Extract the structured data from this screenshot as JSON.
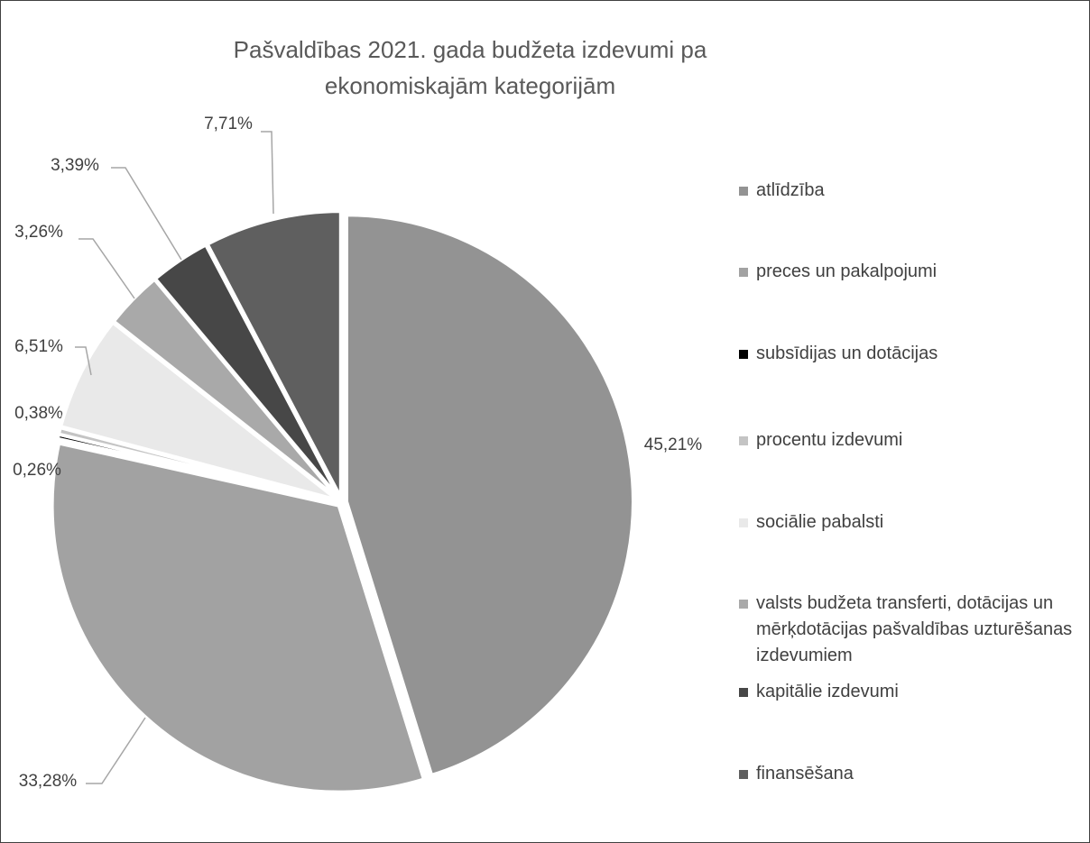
{
  "chart_data": {
    "type": "pie",
    "title": "Pašvaldības 2021. gada budžeta izdevumi pa ekonomiskajām kategorijām",
    "categories": [
      "atlīdzība",
      "preces un pakalpojumi",
      "subsīdijas un dotācijas",
      "procentu izdevumi",
      "sociālie pabalsti",
      "valsts budžeta transferti, dotācijas un mērķdotācijas pašvaldības uzturēšanas izdevumiem",
      "kapitālie izdevumi",
      "finansēšana"
    ],
    "values": [
      45.21,
      33.28,
      0.26,
      0.38,
      6.51,
      3.26,
      3.39,
      7.71
    ],
    "value_labels": [
      "45,21%",
      "33,28%",
      "0,26%",
      "0,38%",
      "6,51%",
      "3,26%",
      "3,39%",
      "7,71%"
    ],
    "colors": [
      "#939393",
      "#a2a2a2",
      "#000000",
      "#c4c4c4",
      "#e9e9e9",
      "#a9a9a9",
      "#474747",
      "#5f5f5f"
    ],
    "legend": "right"
  }
}
